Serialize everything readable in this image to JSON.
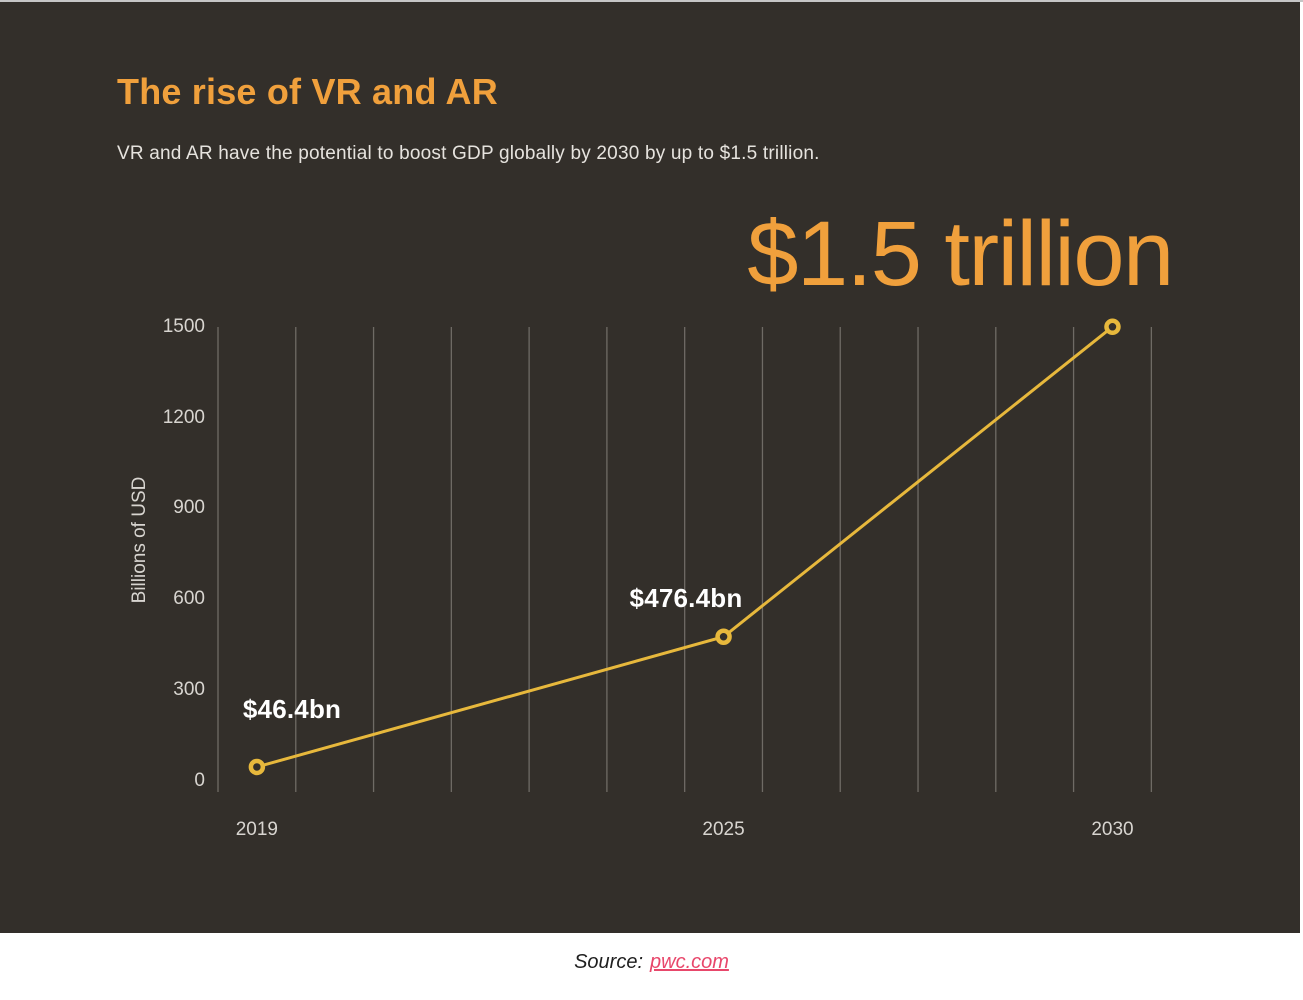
{
  "header": {
    "title": "The rise of VR and AR",
    "subtitle": "VR and AR have the potential to boost GDP globally by 2030 by up to $1.5 trillion."
  },
  "chart_data": {
    "type": "line",
    "x": [
      2019,
      2025,
      2030
    ],
    "values": [
      46.4,
      476.4,
      1500
    ],
    "point_labels": [
      "$46.4bn",
      "$476.4bn",
      "$1.5 trillion"
    ],
    "xlabel": "",
    "ylabel": "Billions of USD",
    "yticks": [
      0,
      300,
      600,
      900,
      1200,
      1500
    ],
    "xticks": [
      2019,
      2025,
      2030
    ],
    "ylim": [
      0,
      1500
    ],
    "x_axis_years": {
      "start": 2019,
      "end": 2030
    },
    "grid": "vertical-yearly",
    "legend": "none",
    "colors": {
      "background": "#332f2a",
      "accent_orange": "#f0a03c",
      "line": "#e7b83c",
      "grid": "#6f6b65",
      "tick_text": "#d8d5d0",
      "point_label_text": "#ffffff",
      "link": "#e8476b"
    }
  },
  "source": {
    "prefix": "Source:",
    "link_text": "pwc.com"
  }
}
